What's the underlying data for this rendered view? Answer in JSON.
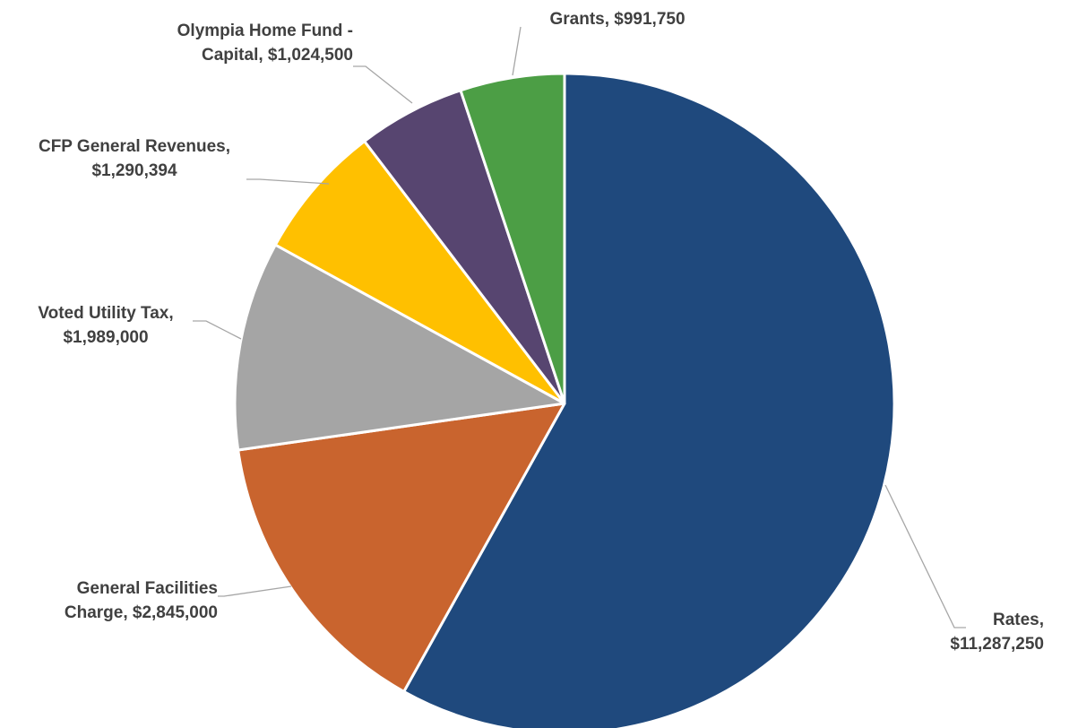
{
  "chart_data": {
    "type": "pie",
    "title": "",
    "start_angle_deg": 0,
    "direction": "clockwise",
    "series": [
      {
        "slices": [
          {
            "name": "Rates",
            "value": 11287250,
            "color": "#1f497d",
            "label_lines": [
              "Rates,",
              "$11,287,250"
            ],
            "label_align": "right"
          },
          {
            "name": "General Facilities Charge",
            "value": 2845000,
            "color": "#c9642e",
            "label_lines": [
              "General  Facilities",
              "Charge,  $2,845,000"
            ],
            "label_align": "right"
          },
          {
            "name": "Voted Utility Tax",
            "value": 1989000,
            "color": "#a5a5a5",
            "label_lines": [
              "Voted Utility Tax,",
              "$1,989,000"
            ],
            "label_align": "center"
          },
          {
            "name": "CFP General Revenues",
            "value": 1290394,
            "color": "#ffc000",
            "label_lines": [
              "CFP General Revenues,",
              "$1,290,394"
            ],
            "label_align": "center"
          },
          {
            "name": "Olympia Home Fund - Capital",
            "value": 1024500,
            "color": "#574570",
            "label_lines": [
              "Olympia Home Fund -",
              "Capital,  $1,024,500"
            ],
            "label_align": "right"
          },
          {
            "name": "Grants",
            "value": 991750,
            "color": "#4c9e45",
            "label_lines": [
              "Grants,  $991,750"
            ],
            "label_align": "center"
          }
        ]
      }
    ],
    "legend": "none"
  }
}
